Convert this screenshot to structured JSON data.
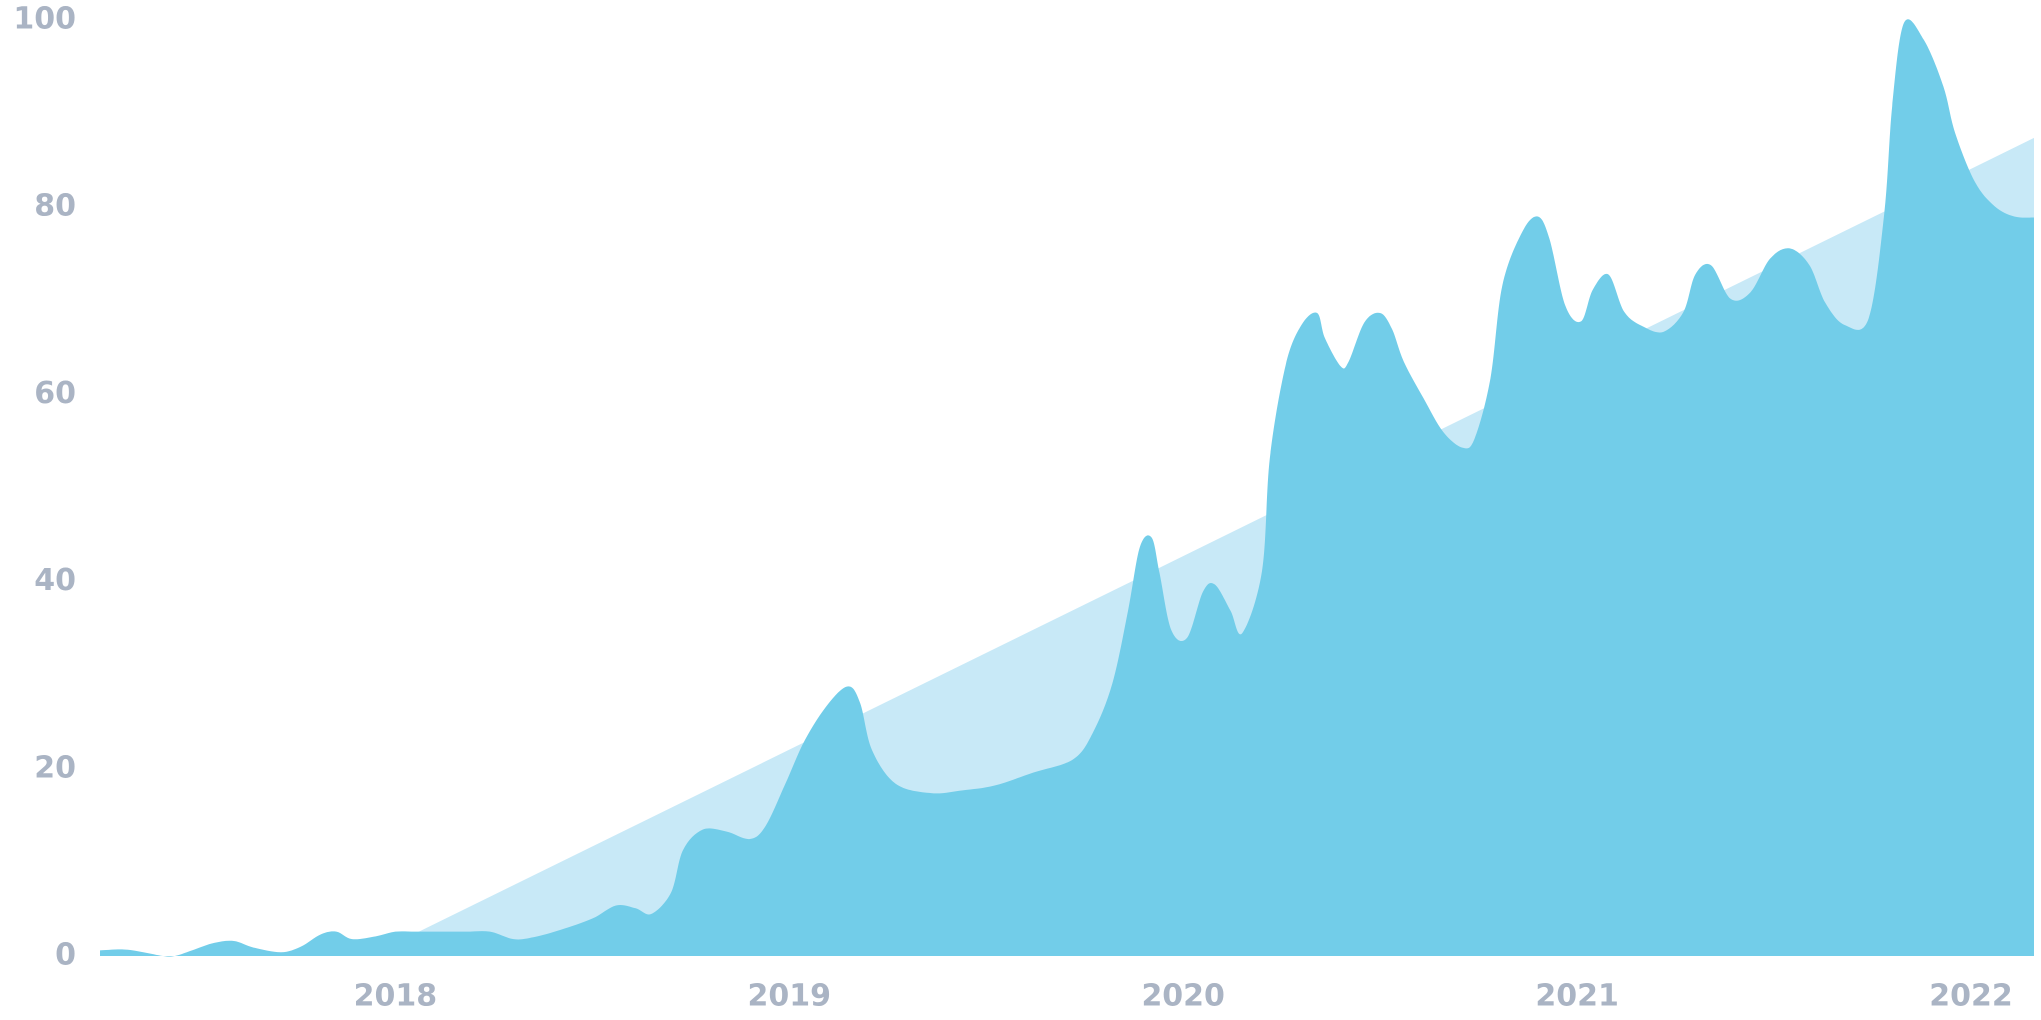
{
  "chart_data": {
    "type": "area",
    "xlim": [
      2017.25,
      2022.16
    ],
    "xticks": [
      2018,
      2019,
      2020,
      2021,
      2022
    ],
    "ylim": [
      0,
      100
    ],
    "yticks": [
      0,
      20,
      40,
      60,
      80,
      100
    ],
    "grid": false,
    "series": [
      {
        "color": "#c8e9f7",
        "x": [
          2018.05,
          2022.16
        ],
        "values": [
          2.4,
          87.4
        ]
      },
      {
        "color": "#72cde9",
        "x": [
          2017.25,
          2017.31,
          2017.36,
          2017.41,
          2017.44,
          2017.49,
          2017.54,
          2017.59,
          2017.64,
          2017.71,
          2017.76,
          2017.81,
          2017.85,
          2017.89,
          2017.95,
          2018.0,
          2018.05,
          2018.12,
          2018.18,
          2018.24,
          2018.3,
          2018.35,
          2018.42,
          2018.5,
          2018.56,
          2018.61,
          2018.65,
          2018.7,
          2018.73,
          2018.78,
          2018.84,
          2018.9,
          2018.94,
          2018.99,
          2019.04,
          2019.1,
          2019.15,
          2019.18,
          2019.21,
          2019.27,
          2019.36,
          2019.44,
          2019.52,
          2019.62,
          2019.72,
          2019.77,
          2019.82,
          2019.86,
          2019.89,
          2019.92,
          2019.94,
          2019.97,
          2020.01,
          2020.05,
          2020.08,
          2020.12,
          2020.15,
          2020.2,
          2020.22,
          2020.26,
          2020.3,
          2020.34,
          2020.36,
          2020.4,
          2020.42,
          2020.46,
          2020.5,
          2020.53,
          2020.56,
          2020.61,
          2020.66,
          2020.71,
          2020.74,
          2020.78,
          2020.81,
          2020.86,
          2020.9,
          2020.93,
          2020.97,
          2021.01,
          2021.04,
          2021.08,
          2021.12,
          2021.17,
          2021.22,
          2021.27,
          2021.3,
          2021.34,
          2021.39,
          2021.44,
          2021.49,
          2021.54,
          2021.59,
          2021.63,
          2021.68,
          2021.74,
          2021.78,
          2021.8,
          2021.83,
          2021.88,
          2021.93,
          2021.96,
          2022.01,
          2022.06,
          2022.11,
          2022.16
        ],
        "values": [
          0.6,
          0.7,
          0.4,
          0,
          0,
          0.7,
          1.4,
          1.6,
          0.9,
          0.4,
          1,
          2.3,
          2.6,
          1.8,
          2.1,
          2.6,
          2.6,
          2.6,
          2.6,
          2.6,
          1.8,
          2,
          2.8,
          4,
          5.4,
          5.1,
          4.5,
          6.8,
          11.3,
          13.5,
          13.3,
          12.5,
          13.9,
          18.4,
          23.1,
          27,
          28.8,
          27,
          22,
          18.4,
          17.4,
          17.7,
          18.2,
          19.6,
          21,
          23.8,
          29.1,
          36.9,
          43.7,
          44.7,
          40.9,
          34.8,
          34,
          38.9,
          39.7,
          36.9,
          34.5,
          41.1,
          53.2,
          63.1,
          67.4,
          68.7,
          66,
          63,
          63.5,
          67.7,
          68.7,
          67,
          63.5,
          59.6,
          56,
          54.3,
          55.3,
          61.7,
          71.6,
          77.3,
          79,
          76.6,
          69.5,
          67.8,
          71.2,
          72.8,
          68.8,
          67.2,
          66.7,
          68.8,
          72.8,
          73.8,
          70.2,
          70.9,
          74.5,
          75.6,
          73.8,
          69.8,
          67.4,
          68.1,
          79.4,
          90.8,
          99.7,
          97.9,
          92.9,
          87.9,
          82.7,
          80.1,
          79,
          78.9
        ]
      }
    ]
  }
}
